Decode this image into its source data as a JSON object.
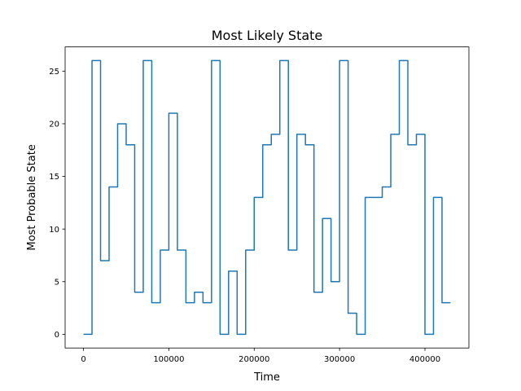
{
  "chart_data": {
    "type": "line",
    "step": "post",
    "title": "Most Likely State",
    "xlabel": "Time",
    "ylabel": "Most Probable State",
    "xlim": [
      -21500,
      451500
    ],
    "ylim": [
      -1.3,
      27.3
    ],
    "xticks": [
      0,
      100000,
      200000,
      300000,
      400000
    ],
    "xtick_labels": [
      "0",
      "100000",
      "200000",
      "300000",
      "400000"
    ],
    "yticks": [
      0,
      5,
      10,
      15,
      20,
      25
    ],
    "ytick_labels": [
      "0",
      "5",
      "10",
      "15",
      "20",
      "25"
    ],
    "grid": false,
    "line_color": "#1f77b4",
    "series": [
      {
        "x": [
          0,
          10000,
          20000,
          30000,
          40000,
          50000,
          60000,
          70000,
          80000,
          90000,
          100000,
          110000,
          120000,
          130000,
          140000,
          150000,
          160000,
          170000,
          180000,
          190000,
          200000,
          210000,
          220000,
          230000,
          240000,
          250000,
          260000,
          270000,
          280000,
          290000,
          300000,
          310000,
          320000,
          330000,
          340000,
          350000,
          360000,
          370000,
          380000,
          390000,
          400000,
          410000,
          420000,
          430000
        ],
        "y": [
          0,
          26,
          7,
          14,
          20,
          18,
          4,
          26,
          3,
          8,
          21,
          8,
          3,
          4,
          3,
          26,
          0,
          6,
          0,
          8,
          13,
          18,
          19,
          26,
          8,
          19,
          18,
          4,
          11,
          5,
          26,
          2,
          0,
          13,
          13,
          14,
          19,
          26,
          18,
          19,
          0,
          13,
          3,
          3
        ]
      }
    ]
  }
}
